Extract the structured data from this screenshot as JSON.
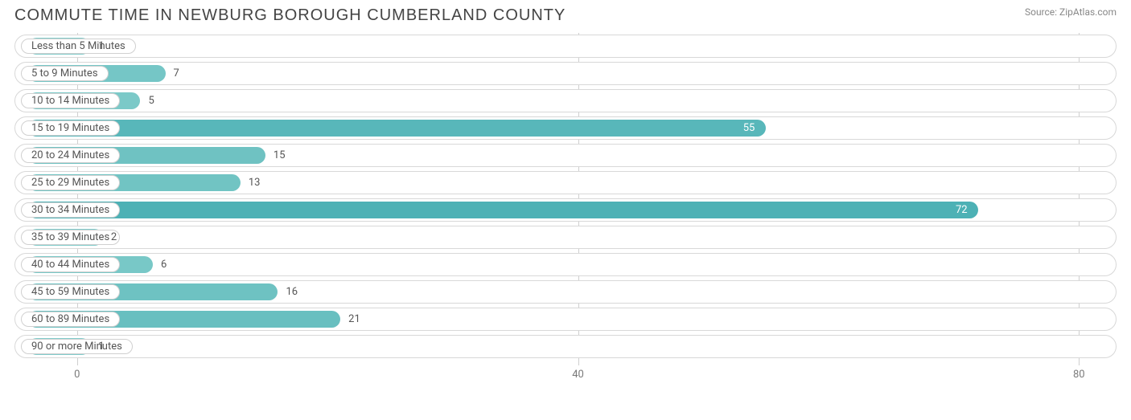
{
  "title": "COMMUTE TIME IN NEWBURG BOROUGH CUMBERLAND COUNTY",
  "source": "Source: ZipAtlas.com",
  "chart": {
    "type": "bar-horizontal",
    "background_color": "#ffffff",
    "row_border_color": "#d8d8d8",
    "grid_color": "#cfcfcf",
    "text_color": "#555555",
    "axis_text_color": "#7a7a7a",
    "pill_bg": "#ffffff",
    "pill_border": "#d0d0d0",
    "x_domain": [
      -5,
      83
    ],
    "x_ticks": [
      0,
      40,
      80
    ],
    "label_origin_value": -4,
    "bars": [
      {
        "label": "Less than 5 Minutes",
        "value": 1,
        "color": "#81cccb",
        "value_color": "#555555"
      },
      {
        "label": "5 to 9 Minutes",
        "value": 7,
        "color": "#75c6c6",
        "value_color": "#555555"
      },
      {
        "label": "10 to 14 Minutes",
        "value": 5,
        "color": "#7bc9c8",
        "value_color": "#555555"
      },
      {
        "label": "15 to 19 Minutes",
        "value": 55,
        "color": "#58b7ba",
        "value_color": "#ffffff"
      },
      {
        "label": "20 to 24 Minutes",
        "value": 15,
        "color": "#6fc2c2",
        "value_color": "#555555"
      },
      {
        "label": "25 to 29 Minutes",
        "value": 13,
        "color": "#71c4c3",
        "value_color": "#555555"
      },
      {
        "label": "30 to 34 Minutes",
        "value": 72,
        "color": "#4db1b5",
        "value_color": "#ffffff"
      },
      {
        "label": "35 to 39 Minutes",
        "value": 2,
        "color": "#80cccb",
        "value_color": "#555555"
      },
      {
        "label": "40 to 44 Minutes",
        "value": 6,
        "color": "#78c8c7",
        "value_color": "#555555"
      },
      {
        "label": "45 to 59 Minutes",
        "value": 16,
        "color": "#6ec2c2",
        "value_color": "#555555"
      },
      {
        "label": "60 to 89 Minutes",
        "value": 21,
        "color": "#68bfc0",
        "value_color": "#555555"
      },
      {
        "label": "90 or more Minutes",
        "value": 1,
        "color": "#81cccb",
        "value_color": "#555555"
      }
    ]
  }
}
